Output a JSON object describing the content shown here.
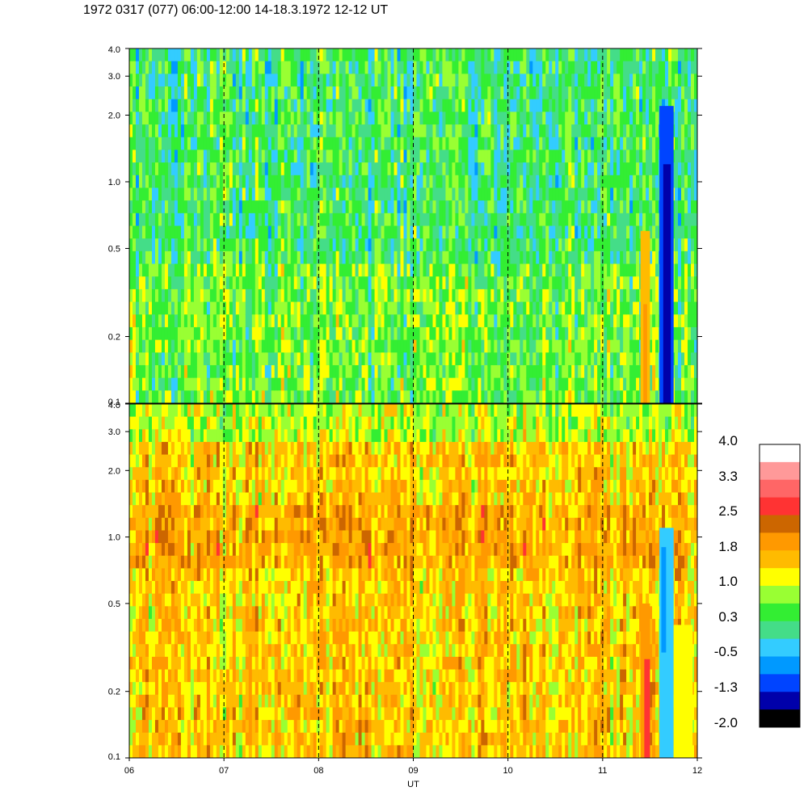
{
  "title": "1972 0317 (077) 06:00-12:00 14-18.3.1972  12-12 UT",
  "chart_data": [
    {
      "type": "heatmap",
      "panel": "top",
      "x_ticks": [
        "06",
        "07",
        "08",
        "09",
        "10",
        "11",
        "12"
      ],
      "x_range": [
        6,
        12
      ],
      "y_scale": "log",
      "y_range": [
        0.1,
        4.0
      ],
      "y_ticks": [
        "0.1",
        "0.2",
        "0.5",
        "1.0",
        "2.0",
        "3.0",
        "4.0"
      ],
      "dashed_hour_lines": [
        7,
        8,
        9,
        10,
        11
      ],
      "dominant_value_range": [
        -0.5,
        1.0
      ],
      "feature_notes": {
        "orange_band_x": [
          11.4,
          11.5
        ],
        "dark_blue_band_x": [
          11.6,
          11.75
        ]
      }
    },
    {
      "type": "heatmap",
      "panel": "bottom",
      "x_ticks": [
        "06",
        "07",
        "08",
        "09",
        "10",
        "11",
        "12"
      ],
      "x_range": [
        6,
        12
      ],
      "xlabel": "UT",
      "y_scale": "log",
      "y_range": [
        0.1,
        4.0
      ],
      "y_ticks": [
        "0.1",
        "0.2",
        "0.5",
        "1.0",
        "2.0",
        "3.0",
        "4.0"
      ],
      "dashed_hour_lines": [
        7,
        8,
        9,
        10,
        11
      ],
      "dominant_value_range": [
        1.0,
        2.5
      ],
      "feature_notes": {
        "red_band_x": [
          11.4,
          11.5
        ],
        "blue_band_x": [
          11.6,
          11.75
        ]
      }
    }
  ],
  "colorbar": {
    "labels": [
      "4.0",
      "3.3",
      "2.5",
      "1.8",
      "1.0",
      "0.3",
      "-0.5",
      "-1.3",
      "-2.0"
    ],
    "colors": [
      "#ffffff",
      "#ff9999",
      "#ff6666",
      "#ff3333",
      "#cc6600",
      "#ff9900",
      "#ffbb00",
      "#ffff00",
      "#99ff33",
      "#33ee33",
      "#44dd88",
      "#33ccff",
      "#0099ff",
      "#0044ff",
      "#0000aa",
      "#000000"
    ]
  }
}
